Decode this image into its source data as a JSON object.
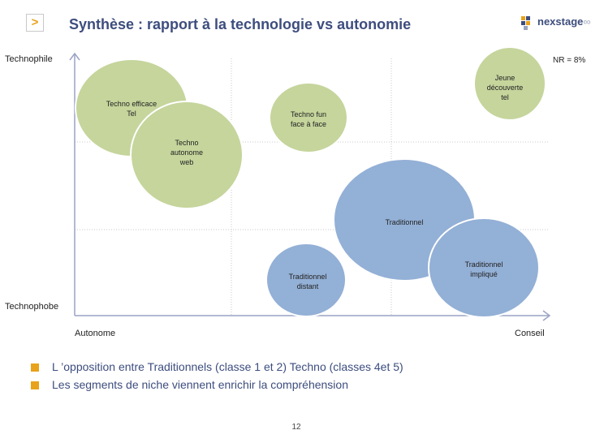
{
  "header": {
    "nav_symbol": ">",
    "title": "Synthèse : rapport à la technologie vs autonomie",
    "logo_text_main": "nexstage",
    "logo_text_tail": "∞"
  },
  "axes": {
    "y_top": "Technophile",
    "y_bottom": "Technophobe",
    "x_left": "Autonome",
    "x_right": "Conseil"
  },
  "note": "NR = 8%",
  "colors": {
    "green_bubble": "#c5d59c",
    "blue_bubble": "#93b0d6",
    "title": "#3d4d7e",
    "bullet": "#e8a21b"
  },
  "bubbles": [
    {
      "label": "Techno efficace\nTel",
      "group": "green"
    },
    {
      "label": "Techno\nautonome\nweb",
      "group": "green"
    },
    {
      "label": "Techno fun\nface à face",
      "group": "green"
    },
    {
      "label": "Jeune\ndécouverte\ntel",
      "group": "green"
    },
    {
      "label": "Traditionnel",
      "group": "blue"
    },
    {
      "label": "Traditionnel\nimpliqué",
      "group": "blue"
    },
    {
      "label": "Traditionnel\ndistant",
      "group": "blue"
    }
  ],
  "bullets": [
    "L ’opposition entre Traditionnels (classe 1 et 2) Techno (classes 4et 5)",
    "Les segments de niche viennent enrichir la compréhension"
  ],
  "page_number": "12"
}
